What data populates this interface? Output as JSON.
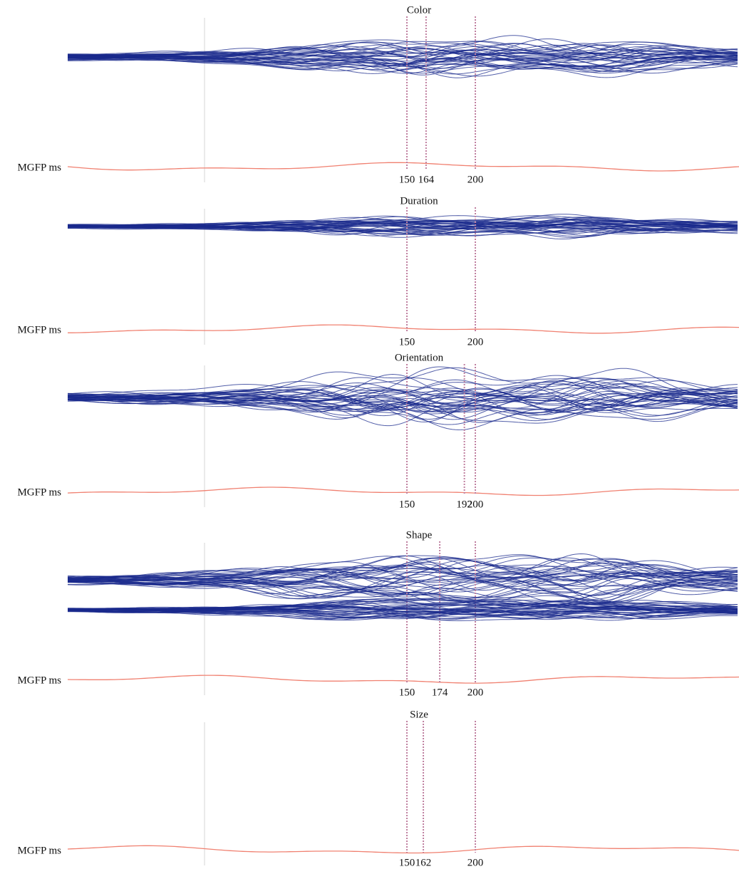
{
  "chart_data": [
    {
      "type": "butterfly",
      "title": "Color",
      "label": "MGFP ms",
      "markers": [
        150,
        164,
        200
      ]
    },
    {
      "type": "butterfly",
      "title": "Duration",
      "label": "MGFP ms",
      "markers": [
        150,
        200
      ]
    },
    {
      "type": "butterfly",
      "title": "Orientation",
      "label": "MGFP ms",
      "markers": [
        150,
        192,
        200
      ]
    },
    {
      "type": "butterfly",
      "title": "Shape",
      "label": "MGFP ms",
      "markers": [
        150,
        174,
        200
      ]
    },
    {
      "type": "butterfly",
      "title": "Size",
      "label": "MGFP ms",
      "markers": [
        150,
        162,
        200
      ]
    }
  ]
}
